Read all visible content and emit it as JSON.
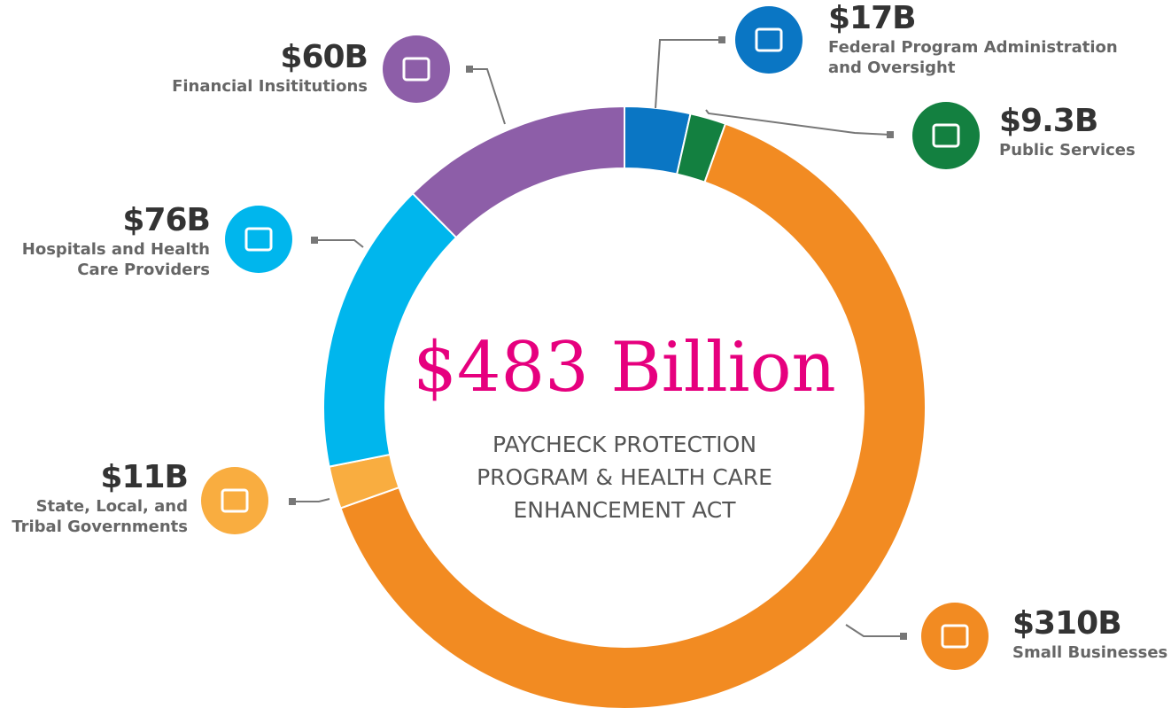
{
  "chart_data": {
    "type": "donut",
    "title": "$483 Billion",
    "subtitle": "PAYCHECK PROTECTION PROGRAM & HEALTH CARE ENHANCEMENT ACT",
    "categories": [
      "Federal Program Administration and Oversight",
      "Public Services",
      "Small Businesses",
      "State, Local, and Tribal Governments",
      "Hospitals and Health Care Providers",
      "Financial Insititutions"
    ],
    "values": [
      17,
      9.3,
      310,
      11,
      76,
      60
    ],
    "value_labels": [
      "$17B",
      "$9.3B",
      "$310B",
      "$11B",
      "$76B",
      "$60B"
    ],
    "colors": [
      "#0a76c4",
      "#138040",
      "#f28b22",
      "#f9ad40",
      "#00b6ed",
      "#8d5ea8"
    ]
  }
}
